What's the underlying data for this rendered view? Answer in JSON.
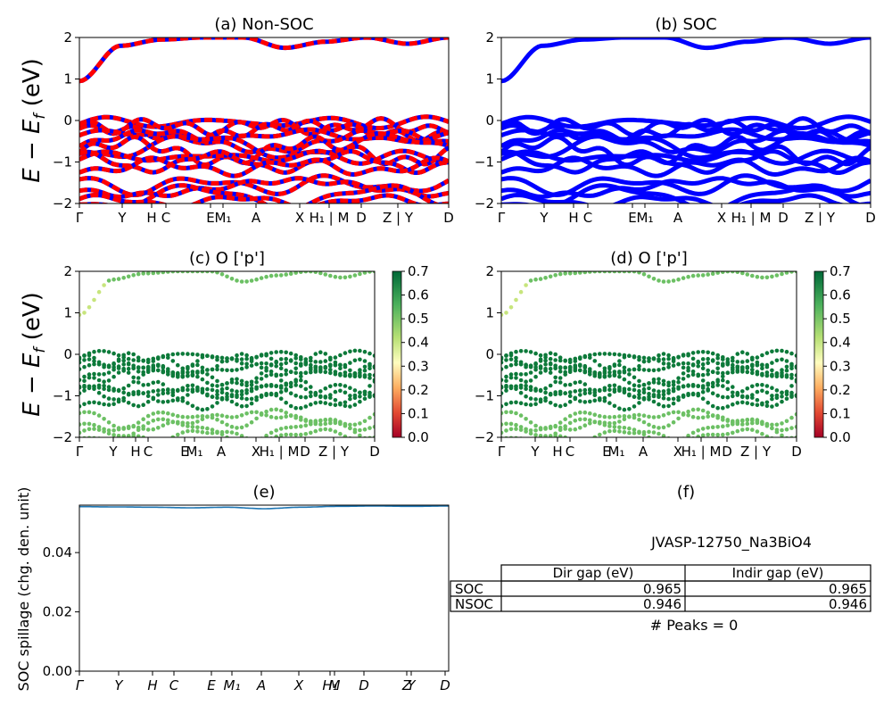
{
  "colors": {
    "red": "#ff0000",
    "blue": "#0000ff",
    "green_dark": "#0d7a3a",
    "green_light": "#6cc064",
    "spill_line": "#1f77b4"
  },
  "ylabel_band": "E − E_f (eV)",
  "ylabel_band_parts": {
    "main": "E − E",
    "sub": "f",
    "tail": " (eV)"
  },
  "chart_data": [
    {
      "id": "a",
      "type": "line",
      "title": "(a) Non-SOC",
      "ylim": [
        -2,
        2
      ],
      "yticks": [
        "2",
        "1",
        "0",
        "−1",
        "−2"
      ],
      "xticks": [
        "Γ",
        "Y",
        "H",
        "C",
        "E",
        "M₁",
        "A",
        "X",
        "H₁ | M",
        "D",
        "Z | Y",
        "D"
      ],
      "series": [
        {
          "values": [
            0.95,
            1.8,
            1.95,
            2.0,
            2.0,
            1.75,
            1.9,
            2.0,
            1.85,
            2.0
          ]
        }
      ]
    },
    {
      "id": "b",
      "type": "line",
      "title": "(b) SOC",
      "ylim": [
        -2,
        2
      ],
      "yticks": [
        "2",
        "1",
        "0",
        "−1",
        "−2"
      ],
      "xticks": [
        "Γ",
        "Y",
        "H",
        "C",
        "E",
        "M₁",
        "A",
        "X",
        "H₁ | M",
        "D",
        "Z | Y",
        "D"
      ],
      "series": [
        {
          "values": [
            0.95,
            1.8,
            1.95,
            2.0,
            2.0,
            1.75,
            1.9,
            2.0,
            1.85,
            2.0
          ]
        }
      ]
    },
    {
      "id": "c",
      "type": "scatter",
      "title": "(c)  O ['p']",
      "ylim": [
        -2,
        2
      ],
      "yticks": [
        "2",
        "1",
        "0",
        "−1",
        "−2"
      ],
      "xticks": [
        "Γ",
        "Y",
        "H",
        "C",
        "E",
        "M₁",
        "A",
        "X",
        "H₁ | M",
        "D",
        "Z | Y",
        "D"
      ],
      "colorbar": {
        "ticks": [
          "0.7",
          "0.6",
          "0.5",
          "0.4",
          "0.3",
          "0.2",
          "0.1",
          "0.0"
        ],
        "range": [
          0.0,
          0.7
        ]
      }
    },
    {
      "id": "d",
      "type": "scatter",
      "title": "(d) O ['p']",
      "ylim": [
        -2,
        2
      ],
      "yticks": [
        "2",
        "1",
        "0",
        "−1",
        "−2"
      ],
      "xticks": [
        "Γ",
        "Y",
        "H",
        "C",
        "E",
        "M₁",
        "A",
        "X",
        "H₁ | M",
        "D",
        "Z | Y",
        "D"
      ],
      "colorbar": {
        "ticks": [
          "0.7",
          "0.6",
          "0.5",
          "0.4",
          "0.3",
          "0.2",
          "0.1",
          "0.0"
        ],
        "range": [
          0.0,
          0.7
        ]
      }
    },
    {
      "id": "e",
      "type": "line",
      "title": "(e)",
      "ylabel": "SOC spillage (chg. den. unit)",
      "ylim": [
        0.0,
        0.056
      ],
      "yticks": [
        "0.04",
        "0.02",
        "0.00"
      ],
      "xticks": [
        "Γ",
        "Y",
        "H",
        "C",
        "E",
        "M₁",
        "A",
        "X",
        "H₁",
        "M",
        "D",
        "Z",
        "Y",
        "D"
      ],
      "series": [
        {
          "values": [
            0.0555,
            0.0554,
            0.0553,
            0.0551,
            0.0553,
            0.0548,
            0.0553,
            0.0556,
            0.0557,
            0.0556,
            0.0557
          ]
        }
      ]
    }
  ],
  "panel_f": {
    "title": "(f)",
    "material": "JVASP-12750_Na3BiO4",
    "table": {
      "headers": [
        "Dir gap (eV)",
        "Indir gap (eV)"
      ],
      "rows": [
        {
          "label": "SOC",
          "dir": "0.965",
          "indir": "0.965"
        },
        {
          "label": "NSOC",
          "dir": "0.946",
          "indir": "0.946"
        }
      ]
    },
    "peaks": "# Peaks = 0"
  }
}
